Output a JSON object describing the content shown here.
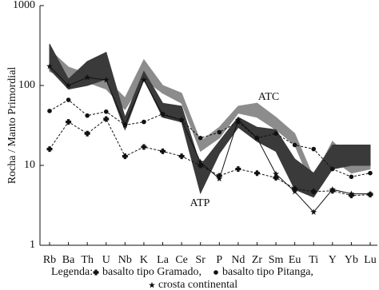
{
  "chart_data": {
    "type": "line",
    "y_label": "Rocha / Manto Primordial",
    "y_scale": "log",
    "ylim": [
      1,
      1000
    ],
    "yticks": [
      1,
      10,
      100,
      1000
    ],
    "categories": [
      "Rb",
      "Ba",
      "Th",
      "U",
      "Nb",
      "K",
      "La",
      "Ce",
      "Sr",
      "P",
      "Nd",
      "Zr",
      "Sm",
      "Eu",
      "Ti",
      "Y",
      "Yb",
      "Lu"
    ],
    "bands": [
      {
        "name": "ATC",
        "color": "#8c8c8c",
        "upper": [
          280,
          170,
          140,
          120,
          70,
          210,
          100,
          80,
          20,
          30,
          55,
          60,
          40,
          25,
          7,
          20,
          12,
          12
        ],
        "lower": [
          150,
          120,
          110,
          90,
          50,
          120,
          80,
          60,
          15,
          22,
          45,
          40,
          28,
          18,
          5,
          12,
          8,
          9
        ]
      },
      {
        "name": "ATP",
        "color": "#3a3a3a",
        "upper": [
          330,
          120,
          200,
          260,
          40,
          150,
          60,
          55,
          10,
          20,
          40,
          30,
          28,
          12,
          8,
          18,
          18,
          18
        ],
        "lower": [
          160,
          90,
          100,
          120,
          28,
          120,
          40,
          35,
          4.5,
          14,
          30,
          20,
          15,
          5,
          4,
          9,
          10,
          10
        ]
      }
    ],
    "legend_title": "Legenda:",
    "series": [
      {
        "name": "basalto tipo Gramado,",
        "color": "#111111",
        "dash": true,
        "marker": "cross",
        "values": [
          16,
          35,
          25,
          38,
          13,
          17,
          15,
          13,
          10,
          7.4,
          9,
          8,
          7,
          5.1,
          4.7,
          4.8,
          4.2,
          4.3
        ]
      },
      {
        "name": "basalto tipo Pitanga,",
        "color": "#111111",
        "dash": true,
        "marker": "dot",
        "values": [
          48,
          66,
          42,
          47,
          32,
          35,
          44,
          37,
          22,
          26,
          35,
          22,
          25,
          18,
          16,
          9,
          7.2,
          8
        ]
      },
      {
        "name": "crosta continental",
        "color": "#111111",
        "dash": false,
        "marker": "star",
        "values": [
          174,
          100,
          126,
          117,
          32,
          117,
          43,
          37,
          11,
          6.8,
          37,
          22,
          7.8,
          4.7,
          2.6,
          5,
          4.4,
          4.4
        ]
      }
    ]
  }
}
